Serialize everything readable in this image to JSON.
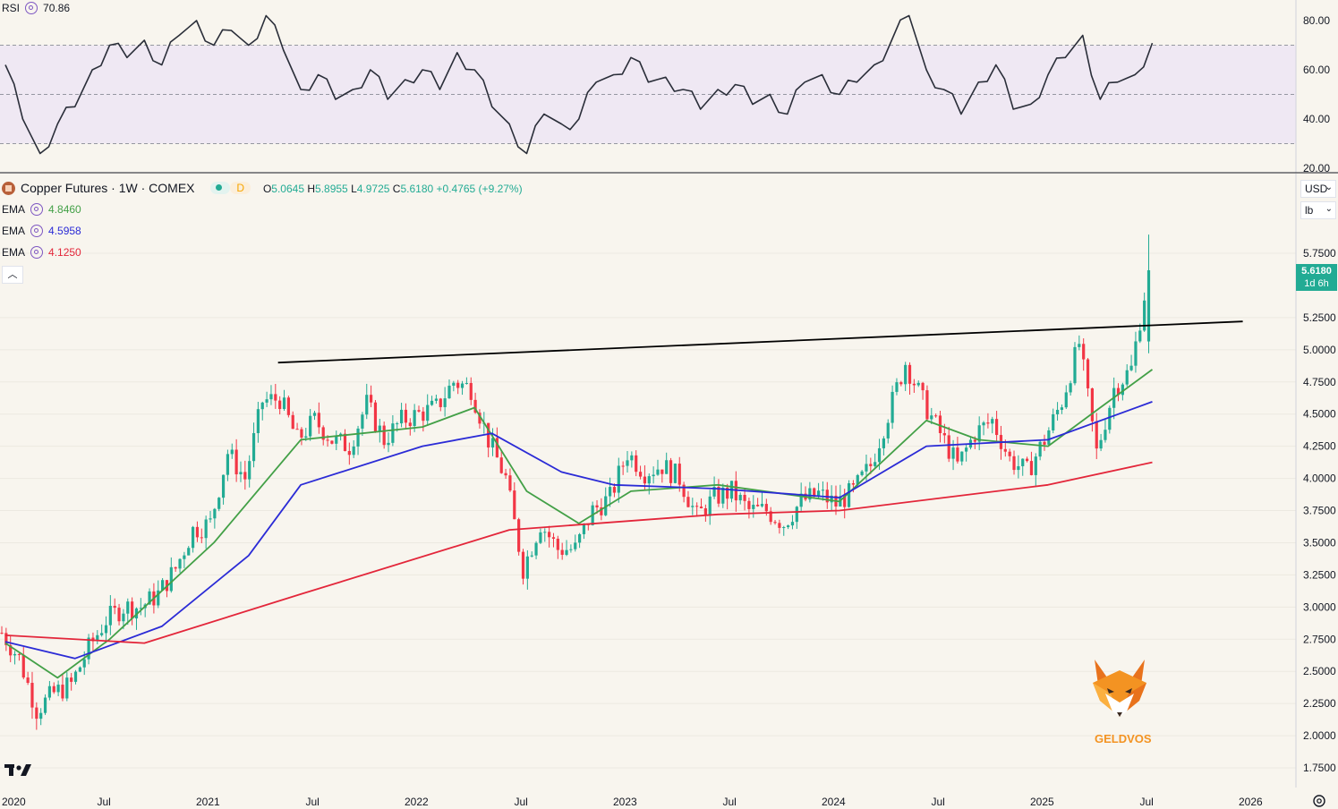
{
  "rsi_panel": {
    "label": "RSI",
    "value": "70.86",
    "axis_ticks": [
      "80.00",
      "60.00",
      "40.00",
      "20.00"
    ],
    "line_color": "#2a2e39",
    "band_color": "#7e57c2"
  },
  "header": {
    "symbol_title": "Copper Futures · 1W · COMEX",
    "interval_badge": "D",
    "open_label": "O",
    "open": "5.0645",
    "high_label": "H",
    "high": "5.8955",
    "low_label": "L",
    "low": "4.9725",
    "close_label": "C",
    "close": "5.6180",
    "change": "+0.4765 (+9.27%)"
  },
  "indicators": [
    {
      "name": "EMA",
      "value": "4.8460",
      "color": "#43a047"
    },
    {
      "name": "EMA",
      "value": "4.5958",
      "color": "#2b2bd6"
    },
    {
      "name": "EMA",
      "value": "4.1250",
      "color": "#e3263a"
    }
  ],
  "price_axis": {
    "currency": "USD",
    "unit": "lb",
    "ticks": [
      "5.7500",
      "5.2500",
      "5.0000",
      "4.7500",
      "4.5000",
      "4.2500",
      "4.0000",
      "3.7500",
      "3.5000",
      "3.2500",
      "3.0000",
      "2.7500",
      "2.5000",
      "2.2500",
      "2.0000",
      "1.7500"
    ],
    "last_price": "5.6180",
    "countdown": "1d 6h"
  },
  "time_axis": {
    "ticks": [
      "2020",
      "Jul",
      "2021",
      "Jul",
      "2022",
      "Jul",
      "2023",
      "Jul",
      "2024",
      "Jul",
      "2025",
      "Jul",
      "2026"
    ]
  },
  "watermark": {
    "text": "GELDVOS"
  },
  "colors": {
    "up": "#22ab94",
    "down": "#f23645",
    "ema20": "#43a047",
    "ema50": "#2b2bd6",
    "ema200": "#e3263a",
    "trendline": "#000000"
  },
  "chart_data": {
    "type": "candlestick",
    "title": "Copper Futures · 1W · COMEX",
    "xlabel": "",
    "ylabel": "",
    "ylim": [
      1.6,
      5.95
    ],
    "x_range": [
      "2020-01",
      "2026-02"
    ],
    "grid": true,
    "series": [
      {
        "name": "Copper Futures",
        "type": "candles (weekly, approximate close path)",
        "points": [
          [
            "2020-01",
            2.8
          ],
          [
            "2020-02",
            2.6
          ],
          [
            "2020-03",
            2.2
          ],
          [
            "2020-04",
            2.33
          ],
          [
            "2020-05",
            2.4
          ],
          [
            "2020-06",
            2.68
          ],
          [
            "2020-07",
            2.9
          ],
          [
            "2020-08",
            3.0
          ],
          [
            "2020-09",
            3.0
          ],
          [
            "2020-10",
            3.1
          ],
          [
            "2020-11",
            3.3
          ],
          [
            "2020-12",
            3.6
          ],
          [
            "2021-01",
            3.65
          ],
          [
            "2021-02",
            4.2
          ],
          [
            "2021-03",
            4.0
          ],
          [
            "2021-04",
            4.6
          ],
          [
            "2021-05",
            4.62
          ],
          [
            "2021-06",
            4.3
          ],
          [
            "2021-07",
            4.45
          ],
          [
            "2021-08",
            4.3
          ],
          [
            "2021-09",
            4.25
          ],
          [
            "2021-10",
            4.58
          ],
          [
            "2021-11",
            4.3
          ],
          [
            "2021-12",
            4.45
          ],
          [
            "2022-01",
            4.5
          ],
          [
            "2022-02",
            4.55
          ],
          [
            "2022-03",
            4.75
          ],
          [
            "2022-04",
            4.7
          ],
          [
            "2022-05",
            4.3
          ],
          [
            "2022-06",
            4.0
          ],
          [
            "2022-07",
            3.3
          ],
          [
            "2022-08",
            3.65
          ],
          [
            "2022-09",
            3.45
          ],
          [
            "2022-10",
            3.45
          ],
          [
            "2022-11",
            3.75
          ],
          [
            "2022-12",
            3.85
          ],
          [
            "2023-01",
            4.2
          ],
          [
            "2023-02",
            4.05
          ],
          [
            "2023-03",
            4.1
          ],
          [
            "2023-04",
            4.0
          ],
          [
            "2023-05",
            3.7
          ],
          [
            "2023-06",
            3.85
          ],
          [
            "2023-07",
            3.9
          ],
          [
            "2023-08",
            3.75
          ],
          [
            "2023-09",
            3.75
          ],
          [
            "2023-10",
            3.65
          ],
          [
            "2023-11",
            3.82
          ],
          [
            "2023-12",
            3.88
          ],
          [
            "2024-01",
            3.8
          ],
          [
            "2024-02",
            3.9
          ],
          [
            "2024-03",
            4.1
          ],
          [
            "2024-04",
            4.5
          ],
          [
            "2024-05",
            4.9
          ],
          [
            "2024-06",
            4.6
          ],
          [
            "2024-07",
            4.35
          ],
          [
            "2024-08",
            4.1
          ],
          [
            "2024-09",
            4.35
          ],
          [
            "2024-10",
            4.45
          ],
          [
            "2024-11",
            4.15
          ],
          [
            "2024-12",
            4.05
          ],
          [
            "2025-01",
            4.3
          ],
          [
            "2025-02",
            4.6
          ],
          [
            "2025-03",
            5.05
          ],
          [
            "2025-04",
            4.2
          ],
          [
            "2025-05",
            4.7
          ],
          [
            "2025-06",
            4.85
          ],
          [
            "2025-07",
            5.618
          ]
        ]
      },
      {
        "name": "EMA",
        "value": "4.8460",
        "points": [
          [
            "2020-01",
            2.72
          ],
          [
            "2020-04",
            2.45
          ],
          [
            "2020-07",
            2.75
          ],
          [
            "2021-01",
            3.5
          ],
          [
            "2021-06",
            4.3
          ],
          [
            "2022-01",
            4.4
          ],
          [
            "2022-04",
            4.55
          ],
          [
            "2022-07",
            3.9
          ],
          [
            "2022-10",
            3.65
          ],
          [
            "2023-01",
            3.9
          ],
          [
            "2023-06",
            3.95
          ],
          [
            "2024-01",
            3.82
          ],
          [
            "2024-06",
            4.45
          ],
          [
            "2024-09",
            4.3
          ],
          [
            "2025-01",
            4.25
          ],
          [
            "2025-04",
            4.55
          ],
          [
            "2025-07",
            4.846
          ]
        ]
      },
      {
        "name": "EMA",
        "value": "4.5958",
        "points": [
          [
            "2020-01",
            2.73
          ],
          [
            "2020-05",
            2.6
          ],
          [
            "2020-10",
            2.85
          ],
          [
            "2021-03",
            3.4
          ],
          [
            "2021-06",
            3.95
          ],
          [
            "2022-01",
            4.25
          ],
          [
            "2022-05",
            4.35
          ],
          [
            "2022-09",
            4.05
          ],
          [
            "2022-12",
            3.95
          ],
          [
            "2023-06",
            3.92
          ],
          [
            "2024-01",
            3.85
          ],
          [
            "2024-06",
            4.25
          ],
          [
            "2025-01",
            4.3
          ],
          [
            "2025-07",
            4.596
          ]
        ]
      },
      {
        "name": "EMA",
        "value": "4.1250",
        "points": [
          [
            "2020-01",
            2.78
          ],
          [
            "2020-09",
            2.72
          ],
          [
            "2021-06",
            3.1
          ],
          [
            "2022-06",
            3.6
          ],
          [
            "2023-06",
            3.72
          ],
          [
            "2024-01",
            3.75
          ],
          [
            "2024-07",
            3.85
          ],
          [
            "2025-01",
            3.95
          ],
          [
            "2025-07",
            4.125
          ]
        ]
      }
    ],
    "trendline": {
      "start": [
        "2021-05",
        4.9
      ],
      "end": [
        "2025-12",
        5.22
      ]
    },
    "rsi": {
      "name": "RSI",
      "ylim": [
        20,
        85
      ],
      "band": [
        30,
        70
      ],
      "mid": 50,
      "points": [
        [
          "2020-01",
          62
        ],
        [
          "2020-02",
          40
        ],
        [
          "2020-03",
          26
        ],
        [
          "2020-04",
          38
        ],
        [
          "2020-05",
          45
        ],
        [
          "2020-06",
          60
        ],
        [
          "2020-07",
          70
        ],
        [
          "2020-08",
          65
        ],
        [
          "2020-09",
          72
        ],
        [
          "2020-10",
          62
        ],
        [
          "2020-11",
          74
        ],
        [
          "2020-12",
          80
        ],
        [
          "2021-01",
          70
        ],
        [
          "2021-02",
          76
        ],
        [
          "2021-03",
          70
        ],
        [
          "2021-04",
          82
        ],
        [
          "2021-05",
          68
        ],
        [
          "2021-06",
          52
        ],
        [
          "2021-07",
          58
        ],
        [
          "2021-08",
          48
        ],
        [
          "2021-09",
          52
        ],
        [
          "2021-10",
          60
        ],
        [
          "2021-11",
          48
        ],
        [
          "2021-12",
          56
        ],
        [
          "2022-01",
          60
        ],
        [
          "2022-02",
          52
        ],
        [
          "2022-03",
          67
        ],
        [
          "2022-04",
          60
        ],
        [
          "2022-05",
          45
        ],
        [
          "2022-06",
          38
        ],
        [
          "2022-07",
          26
        ],
        [
          "2022-08",
          42
        ],
        [
          "2022-09",
          38
        ],
        [
          "2022-10",
          40
        ],
        [
          "2022-11",
          55
        ],
        [
          "2022-12",
          58
        ],
        [
          "2023-01",
          65
        ],
        [
          "2023-02",
          55
        ],
        [
          "2023-03",
          57
        ],
        [
          "2023-04",
          52
        ],
        [
          "2023-05",
          44
        ],
        [
          "2023-06",
          52
        ],
        [
          "2023-07",
          54
        ],
        [
          "2023-08",
          46
        ],
        [
          "2023-09",
          50
        ],
        [
          "2023-10",
          42
        ],
        [
          "2023-11",
          55
        ],
        [
          "2023-12",
          58
        ],
        [
          "2024-01",
          50
        ],
        [
          "2024-02",
          55
        ],
        [
          "2024-03",
          62
        ],
        [
          "2024-04",
          72
        ],
        [
          "2024-05",
          82
        ],
        [
          "2024-06",
          60
        ],
        [
          "2024-07",
          52
        ],
        [
          "2024-08",
          42
        ],
        [
          "2024-09",
          55
        ],
        [
          "2024-10",
          62
        ],
        [
          "2024-11",
          44
        ],
        [
          "2024-12",
          46
        ],
        [
          "2025-01",
          58
        ],
        [
          "2025-02",
          65
        ],
        [
          "2025-03",
          74
        ],
        [
          "2025-04",
          48
        ],
        [
          "2025-05",
          55
        ],
        [
          "2025-06",
          58
        ],
        [
          "2025-07",
          70.86
        ]
      ]
    }
  }
}
